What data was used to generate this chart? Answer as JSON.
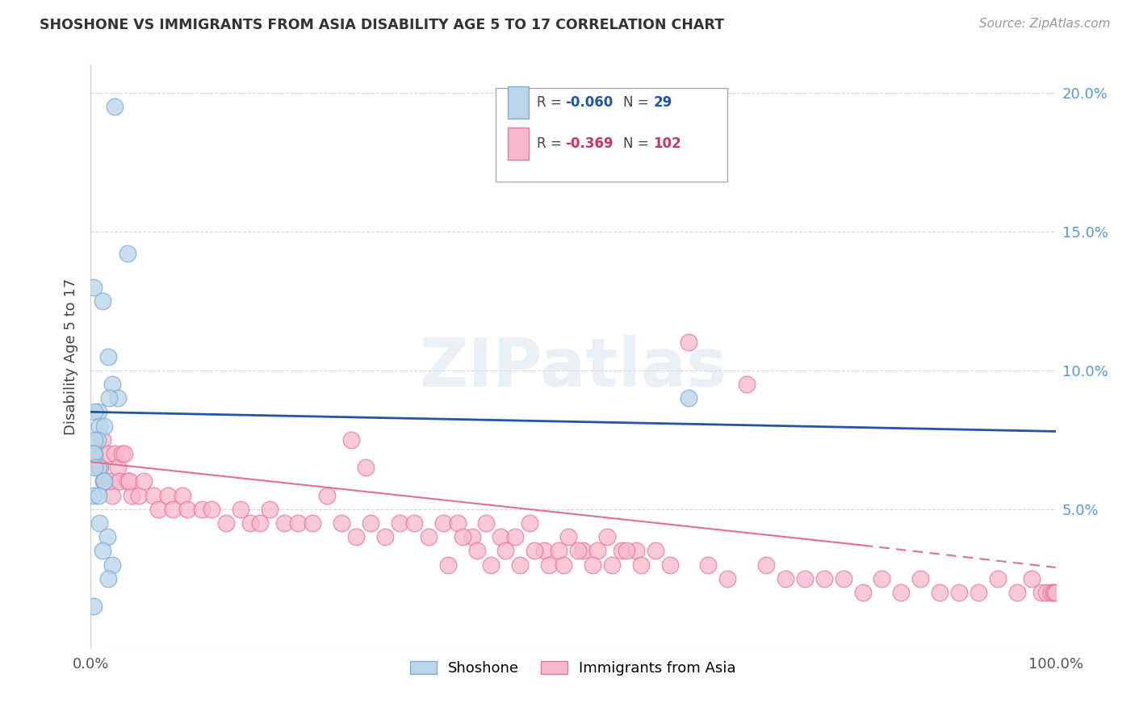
{
  "title": "SHOSHONE VS IMMIGRANTS FROM ASIA DISABILITY AGE 5 TO 17 CORRELATION CHART",
  "source": "Source: ZipAtlas.com",
  "ylabel": "Disability Age 5 to 17",
  "shoshone_R": -0.06,
  "shoshone_N": 29,
  "immigrants_R": -0.369,
  "immigrants_N": 102,
  "shoshone_color": "#bad4ea",
  "shoshone_edge": "#7aaed4",
  "immigrants_color": "#f7b8cc",
  "immigrants_edge": "#e8799a",
  "line_shoshone_color": "#2255aa",
  "line_immigrants_color": "#e07090",
  "background_color": "#ffffff",
  "watermark": "ZIPatlas",
  "shoshone_x": [
    0.3,
    2.5,
    3.8,
    1.2,
    1.8,
    2.2,
    2.8,
    1.9,
    0.8,
    0.4,
    0.9,
    1.4,
    0.7,
    0.4,
    0.4,
    0.3,
    0.8,
    0.4,
    1.3,
    1.4,
    0.3,
    0.8,
    0.9,
    1.7,
    62.0,
    1.2,
    2.2,
    1.8,
    0.3
  ],
  "shoshone_y": [
    13.0,
    19.5,
    14.2,
    12.5,
    10.5,
    9.5,
    9.0,
    9.0,
    8.5,
    8.5,
    8.0,
    8.0,
    7.5,
    7.5,
    7.0,
    7.0,
    6.5,
    6.5,
    6.0,
    6.0,
    5.5,
    5.5,
    4.5,
    4.0,
    9.0,
    3.5,
    3.0,
    2.5,
    1.5
  ],
  "immigrants_x": [
    0.5,
    0.8,
    0.3,
    1.2,
    1.0,
    1.5,
    1.8,
    1.3,
    2.2,
    2.0,
    2.5,
    2.8,
    3.0,
    3.2,
    3.8,
    3.5,
    4.2,
    4.0,
    5.0,
    5.5,
    6.5,
    7.0,
    8.0,
    8.5,
    9.5,
    10.0,
    11.5,
    12.5,
    14.0,
    15.5,
    16.5,
    17.5,
    18.5,
    20.0,
    21.5,
    23.0,
    24.5,
    26.0,
    27.5,
    29.0,
    30.5,
    32.0,
    33.5,
    35.0,
    36.5,
    38.0,
    39.5,
    41.0,
    42.5,
    44.0,
    45.5,
    47.0,
    48.5,
    49.5,
    51.0,
    52.5,
    53.5,
    55.0,
    56.5,
    37.0,
    38.5,
    40.0,
    41.5,
    43.0,
    44.5,
    46.0,
    47.5,
    49.0,
    50.5,
    52.0,
    54.0,
    55.5,
    57.0,
    58.5,
    60.0,
    62.0,
    64.0,
    66.0,
    68.0,
    70.0,
    72.0,
    74.0,
    76.0,
    78.0,
    80.0,
    82.0,
    84.0,
    86.0,
    88.0,
    90.0,
    92.0,
    94.0,
    96.0,
    97.5,
    98.5,
    99.0,
    99.5,
    99.8,
    99.9,
    100.0,
    27.0,
    28.5
  ],
  "immigrants_y": [
    6.8,
    6.5,
    7.0,
    7.5,
    6.5,
    6.0,
    7.0,
    6.0,
    5.5,
    6.0,
    7.0,
    6.5,
    6.0,
    7.0,
    6.0,
    7.0,
    5.5,
    6.0,
    5.5,
    6.0,
    5.5,
    5.0,
    5.5,
    5.0,
    5.5,
    5.0,
    5.0,
    5.0,
    4.5,
    5.0,
    4.5,
    4.5,
    5.0,
    4.5,
    4.5,
    4.5,
    5.5,
    4.5,
    4.0,
    4.5,
    4.0,
    4.5,
    4.5,
    4.0,
    4.5,
    4.5,
    4.0,
    4.5,
    4.0,
    4.0,
    4.5,
    3.5,
    3.5,
    4.0,
    3.5,
    3.5,
    4.0,
    3.5,
    3.5,
    3.0,
    4.0,
    3.5,
    3.0,
    3.5,
    3.0,
    3.5,
    3.0,
    3.0,
    3.5,
    3.0,
    3.0,
    3.5,
    3.0,
    3.5,
    3.0,
    11.0,
    3.0,
    2.5,
    9.5,
    3.0,
    2.5,
    2.5,
    2.5,
    2.5,
    2.0,
    2.5,
    2.0,
    2.5,
    2.0,
    2.0,
    2.0,
    2.5,
    2.0,
    2.5,
    2.0,
    2.0,
    2.0,
    2.0,
    2.0,
    2.0,
    7.5,
    6.5
  ],
  "xlim": [
    0,
    100
  ],
  "ylim": [
    0,
    21
  ],
  "yticks": [
    0,
    5,
    10,
    15,
    20
  ],
  "ytick_labels_right": [
    "",
    "5.0%",
    "10.0%",
    "15.0%",
    "20.0%"
  ],
  "sh_line": [
    8.5,
    7.8
  ],
  "im_line_solid": [
    [
      0,
      80
    ],
    [
      6.7,
      3.7
    ]
  ],
  "im_line_dash": [
    [
      80,
      100
    ],
    [
      3.7,
      2.9
    ]
  ]
}
